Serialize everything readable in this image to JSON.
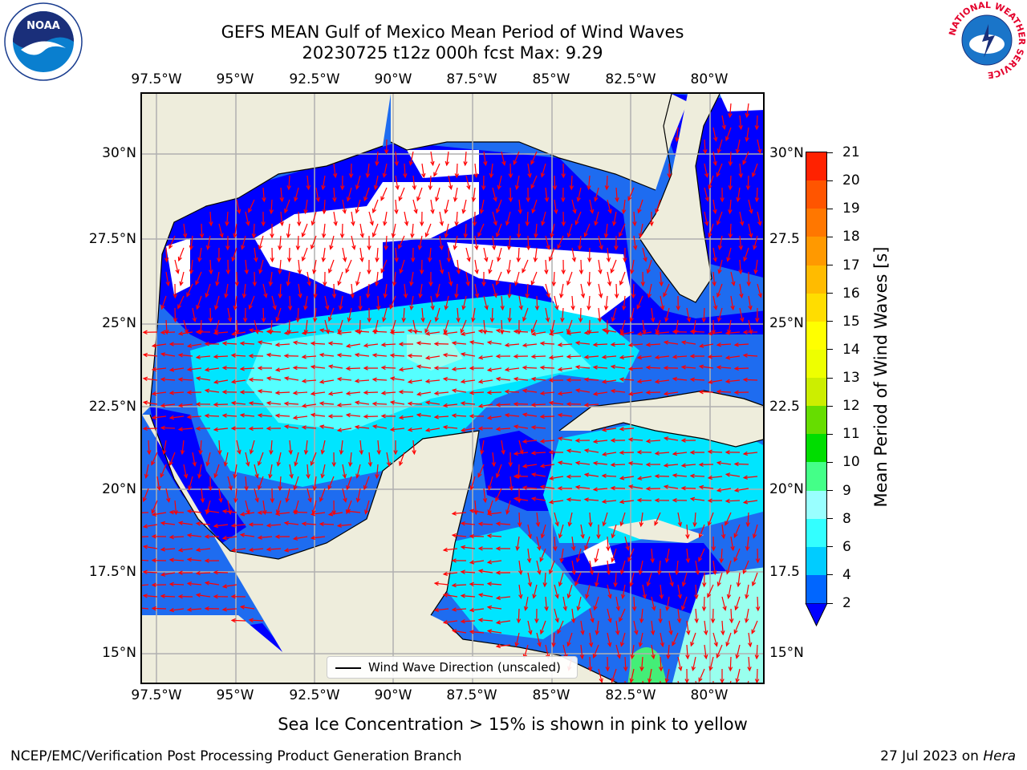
{
  "title": {
    "line1": "GEFS MEAN Gulf of Mexico Mean Period of Wind Waves",
    "line2": "20230725 t12z 000h fcst   Max: 9.29"
  },
  "axes": {
    "lon_labels": [
      "97.5°W",
      "95°W",
      "92.5°W",
      "90°W",
      "87.5°W",
      "85°W",
      "82.5°W",
      "80°W"
    ],
    "lat_labels_left": [
      "30°N",
      "27.5°N",
      "25°N",
      "22.5°N",
      "20°N",
      "17.5°N",
      "15°N"
    ],
    "lat_labels_right": [
      "30°N",
      "27.5",
      "25°N",
      "22.5",
      "20°N",
      "17.5",
      "15°N"
    ]
  },
  "legend": {
    "label": "Wind Wave Direction (unscaled)"
  },
  "colorbar": {
    "label": "Mean Period of Wind Waves [s]",
    "ticks": [
      "2",
      "4",
      "6",
      "8",
      "9",
      "10",
      "11",
      "12",
      "13",
      "14",
      "15",
      "16",
      "17",
      "18",
      "19",
      "20",
      "21"
    ],
    "colors": [
      "#0066ff",
      "#00ccff",
      "#33ffff",
      "#99ffff",
      "#44ff88",
      "#00dd00",
      "#66dd00",
      "#ccee00",
      "#eeff00",
      "#ffff00",
      "#ffdd00",
      "#ffbb00",
      "#ff9900",
      "#ff7700",
      "#ff5500",
      "#ff2200"
    ],
    "under_color": "#0000ff"
  },
  "map_colors": {
    "land": "#eeeddc",
    "no_data": "#ffffff",
    "lt2": "#0000ff",
    "p2_4": "#1e6cf0",
    "p4_6": "#00e5ff",
    "p6_8": "#55ffff",
    "p8_9": "#99ffee",
    "p9_10": "#44ee77",
    "arrow": "#ff0000",
    "grid": "#b0b0b0"
  },
  "note": "Sea Ice Concentration > 15% is shown in pink to yellow",
  "footer": {
    "left": "NCEP/EMC/Verification Post Processing Product Generation Branch",
    "right_prefix": "27 Jul 2023 on ",
    "right_machine": "Hera"
  },
  "logos": {
    "noaa_text": "NOAA",
    "nws_ring_text": "NATIONAL WEATHER SERVICE"
  }
}
